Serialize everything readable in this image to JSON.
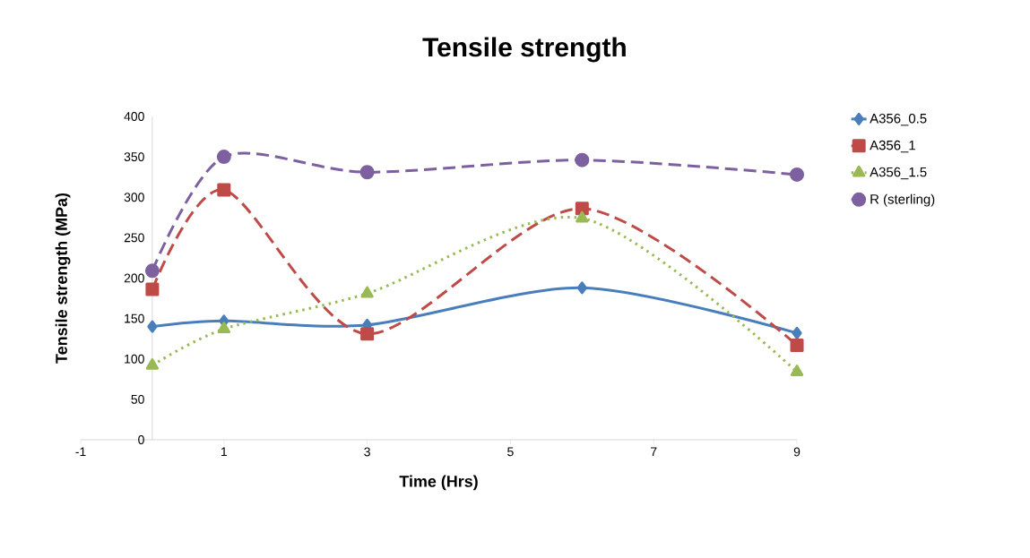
{
  "chart_data": {
    "type": "line",
    "title": "Tensile strength",
    "xlabel": "Time (Hrs)",
    "ylabel": "Tensile strength (MPa)",
    "x": [
      0,
      1,
      3,
      6,
      9
    ],
    "series": [
      {
        "name": "A356_0.5",
        "color": "#4a7ebb",
        "marker": "diamond",
        "line_style": "solid",
        "values": [
          140,
          147,
          142,
          188,
          132
        ]
      },
      {
        "name": "A356_1",
        "color": "#be4b48",
        "marker": "square",
        "line_style": "dashed",
        "values": [
          186,
          309,
          131,
          286,
          117
        ]
      },
      {
        "name": "A356_1.5",
        "color": "#98b954",
        "marker": "triangle",
        "line_style": "dotted",
        "values": [
          92,
          137,
          181,
          274,
          84
        ]
      },
      {
        "name": "R (sterling)",
        "color": "#7d60a0",
        "marker": "circle",
        "line_style": "dashed",
        "values": [
          209,
          350,
          331,
          346,
          328
        ]
      }
    ],
    "xlim": [
      -1,
      9
    ],
    "xticks": [
      -1,
      1,
      3,
      5,
      7,
      9
    ],
    "ylim": [
      0,
      400
    ],
    "yticks": [
      0,
      50,
      100,
      150,
      200,
      250,
      300,
      350,
      400
    ],
    "grid": false,
    "legend": "right"
  }
}
